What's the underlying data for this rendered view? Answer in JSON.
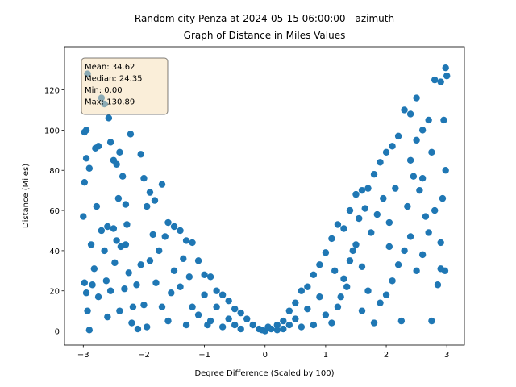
{
  "chart_data": {
    "type": "scatter",
    "title": "Random city Penza at 2024-05-15 06:00:00  - azimuth",
    "subtitle": "Graph of Distance in Miles Values",
    "xlabel": "Degree Difference (Scaled by 100)",
    "ylabel": "Distance (Miles)",
    "annotations": [
      "Mean: 34.62",
      "Median: 24.35",
      "Min: 0.00",
      "Max: 130.89"
    ],
    "color": "#1f77b4",
    "xlim": [
      -3.31,
      3.29
    ],
    "ylim": [
      -7,
      141.5
    ],
    "xticks": [
      {
        "value": -3,
        "label": "−3"
      },
      {
        "value": -2,
        "label": "−2"
      },
      {
        "value": -1,
        "label": "−1"
      },
      0,
      1,
      2,
      3
    ],
    "yticks": [
      0,
      20,
      40,
      60,
      80,
      100,
      120
    ],
    "x": [
      -2.93,
      -2.98,
      -2.95,
      -2.98,
      -2.95,
      -3.0,
      -2.9,
      -2.87,
      -2.98,
      -2.95,
      -2.93,
      -2.9,
      -2.85,
      -2.82,
      -2.8,
      -2.75,
      -2.7,
      -2.65,
      -2.58,
      -2.55,
      -2.5,
      -2.45,
      -2.4,
      -2.22,
      -2.35,
      -2.3,
      -2.42,
      -2.78,
      -2.7,
      -2.6,
      -2.5,
      -2.45,
      -2.38,
      -2.28,
      -2.65,
      -2.75,
      -2.62,
      -2.55,
      -2.48,
      -2.4,
      -2.32,
      -2.25,
      -2.18,
      -2.12,
      -2.05,
      -2.2,
      -2.1,
      -2.05,
      -2.0,
      -1.9,
      -1.82,
      -1.7,
      -1.6,
      -1.5,
      -1.4,
      -1.3,
      -1.2,
      -1.1,
      -1.0,
      -0.9,
      -0.8,
      -0.7,
      -0.6,
      -0.5,
      -0.4,
      -0.3,
      -0.2,
      -0.1,
      -1.95,
      -1.85,
      -1.75,
      -1.65,
      -1.9,
      -1.8,
      -1.7,
      -1.6,
      -1.5,
      -1.4,
      -1.3,
      -1.2,
      -1.1,
      -1.0,
      -0.9,
      -0.8,
      -0.7,
      -0.6,
      -0.5,
      -0.4,
      -1.55,
      -1.35,
      -1.25,
      -0.95,
      -2.0,
      -1.95,
      -2.3,
      -2.6,
      0.1,
      0.2,
      0.3,
      0.4,
      0.5,
      0.6,
      0.7,
      0.8,
      0.9,
      1.0,
      1.1,
      1.2,
      1.3,
      1.4,
      1.5,
      1.6,
      1.7,
      1.8,
      1.9,
      2.0,
      2.1,
      2.2,
      2.3,
      2.4,
      2.5,
      2.6,
      2.7,
      2.8,
      2.9,
      2.98,
      3.0,
      2.95,
      2.98,
      2.93,
      2.97,
      2.9,
      2.85,
      2.75,
      2.7,
      2.6,
      2.5,
      2.4,
      2.3,
      2.2,
      2.1,
      2.0,
      1.9,
      1.8,
      1.7,
      1.6,
      1.5,
      1.4,
      1.3,
      1.2,
      1.1,
      1.0,
      0.9,
      0.8,
      0.7,
      0.6,
      0.5,
      0.4,
      0.3,
      0.2,
      2.55,
      2.65,
      2.45,
      2.35,
      2.15,
      2.05,
      1.95,
      1.85,
      1.75,
      1.65,
      1.55,
      1.45,
      1.35,
      1.25,
      1.15,
      2.9,
      2.8,
      2.75,
      2.6,
      2.5,
      2.4,
      2.25,
      2.05,
      1.6,
      0.0,
      -0.05,
      0.05
    ],
    "values": [
      128,
      99,
      100,
      74,
      86,
      57,
      81,
      43,
      24,
      19,
      10,
      0.5,
      23,
      31,
      91,
      92,
      116,
      113,
      106,
      94,
      85,
      83,
      89,
      98,
      77,
      63,
      66,
      62,
      50,
      52,
      51,
      45,
      42,
      53,
      40,
      17,
      25,
      20,
      34,
      10,
      21,
      29,
      12,
      23,
      33,
      4,
      1,
      88,
      76,
      69,
      65,
      73,
      54,
      52,
      50,
      45,
      44,
      35,
      28,
      27,
      20,
      18,
      15,
      11,
      9,
      6,
      3,
      1,
      62,
      48,
      40,
      47,
      35,
      24,
      12,
      5,
      30,
      22,
      3,
      12,
      8,
      18,
      5,
      12,
      2,
      6,
      3,
      1,
      19,
      36,
      27,
      3,
      13,
      2,
      43,
      7,
      1,
      3,
      5,
      10,
      14,
      20,
      22,
      28,
      33,
      39,
      46,
      53,
      51,
      60,
      68,
      70,
      71,
      78,
      84,
      89,
      92,
      97,
      110,
      108,
      116,
      100,
      105,
      125,
      124,
      131,
      127,
      105,
      80,
      66,
      30,
      31,
      23,
      5,
      49,
      38,
      30,
      47,
      40,
      33,
      25,
      18,
      14,
      4,
      20,
      32,
      43,
      35,
      26,
      12,
      4,
      8,
      17,
      3,
      11,
      2,
      6,
      3,
      1,
      0.5,
      70,
      57,
      77,
      62,
      71,
      54,
      66,
      58,
      49,
      61,
      56,
      40,
      22,
      17,
      30,
      44,
      60,
      89,
      76,
      95,
      85,
      5,
      42,
      10,
      0,
      0.5,
      2
    ]
  }
}
